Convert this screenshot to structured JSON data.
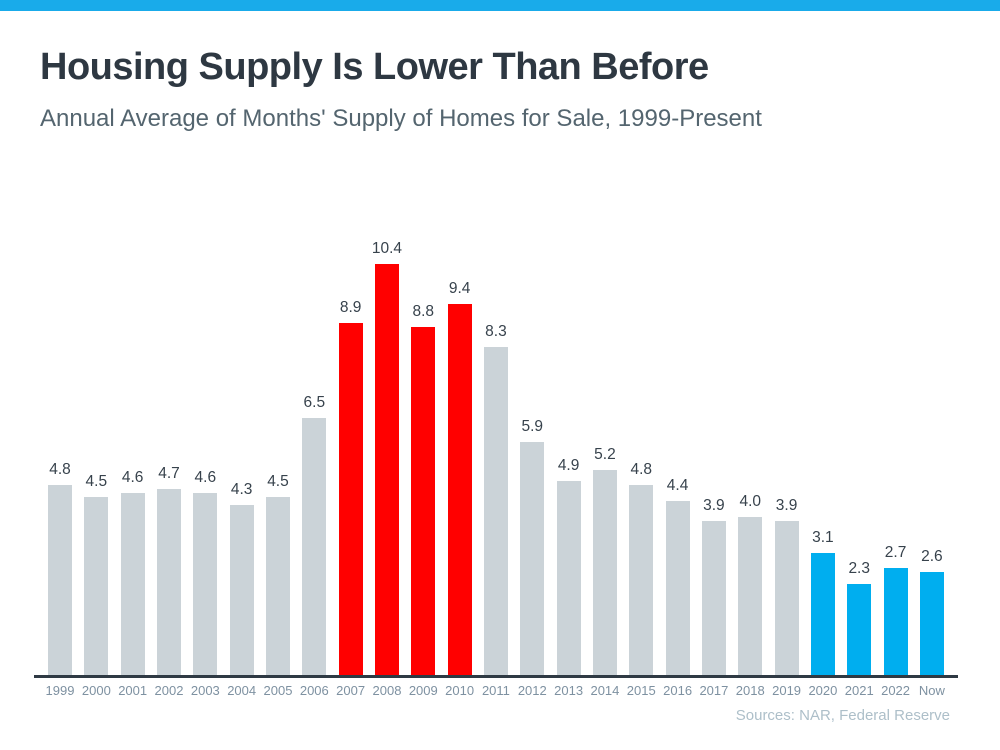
{
  "header": {
    "title": "Housing Supply Is Lower Than Before",
    "subtitle": "Annual Average of Months' Supply of Homes for Sale, 1999-Present"
  },
  "footer": {
    "sources": "Sources: NAR, Federal Reserve"
  },
  "accent_strip_color": "#19abea",
  "chart_data": {
    "type": "bar",
    "title": "Housing Supply Is Lower Than Before",
    "subtitle": "Annual Average of Months' Supply of Homes for Sale, 1999-Present",
    "source": "Sources: NAR, Federal Reserve",
    "xlabel": "",
    "ylabel": "",
    "ylim": [
      0,
      10.4
    ],
    "grid": false,
    "legend": false,
    "value_labels_shown": true,
    "colors": {
      "default": "#cbd3d8",
      "peak": "#ff0000",
      "recent": "#00aeef"
    },
    "categories": [
      "1999",
      "2000",
      "2001",
      "2002",
      "2003",
      "2004",
      "2005",
      "2006",
      "2007",
      "2008",
      "2009",
      "2010",
      "2011",
      "2012",
      "2013",
      "2014",
      "2015",
      "2016",
      "2017",
      "2018",
      "2019",
      "2020",
      "2021",
      "2022",
      "Now"
    ],
    "values": [
      4.8,
      4.5,
      4.6,
      4.7,
      4.6,
      4.3,
      4.5,
      6.5,
      8.9,
      10.4,
      8.8,
      9.4,
      8.3,
      5.9,
      4.9,
      5.2,
      4.8,
      4.4,
      3.9,
      4.0,
      3.9,
      3.1,
      2.3,
      2.7,
      2.6
    ],
    "value_labels": [
      "4.8",
      "4.5",
      "4.6",
      "4.7",
      "4.6",
      "4.3",
      "4.5",
      "6.5",
      "8.9",
      "10.4",
      "8.8",
      "9.4",
      "8.3",
      "5.9",
      "4.9",
      "5.2",
      "4.8",
      "4.4",
      "3.9",
      "4.0",
      "3.9",
      "3.1",
      "2.3",
      "2.7",
      "2.6"
    ],
    "color_keys": [
      "default",
      "default",
      "default",
      "default",
      "default",
      "default",
      "default",
      "default",
      "peak",
      "peak",
      "peak",
      "peak",
      "default",
      "default",
      "default",
      "default",
      "default",
      "default",
      "default",
      "default",
      "default",
      "recent",
      "recent",
      "recent",
      "recent"
    ]
  }
}
